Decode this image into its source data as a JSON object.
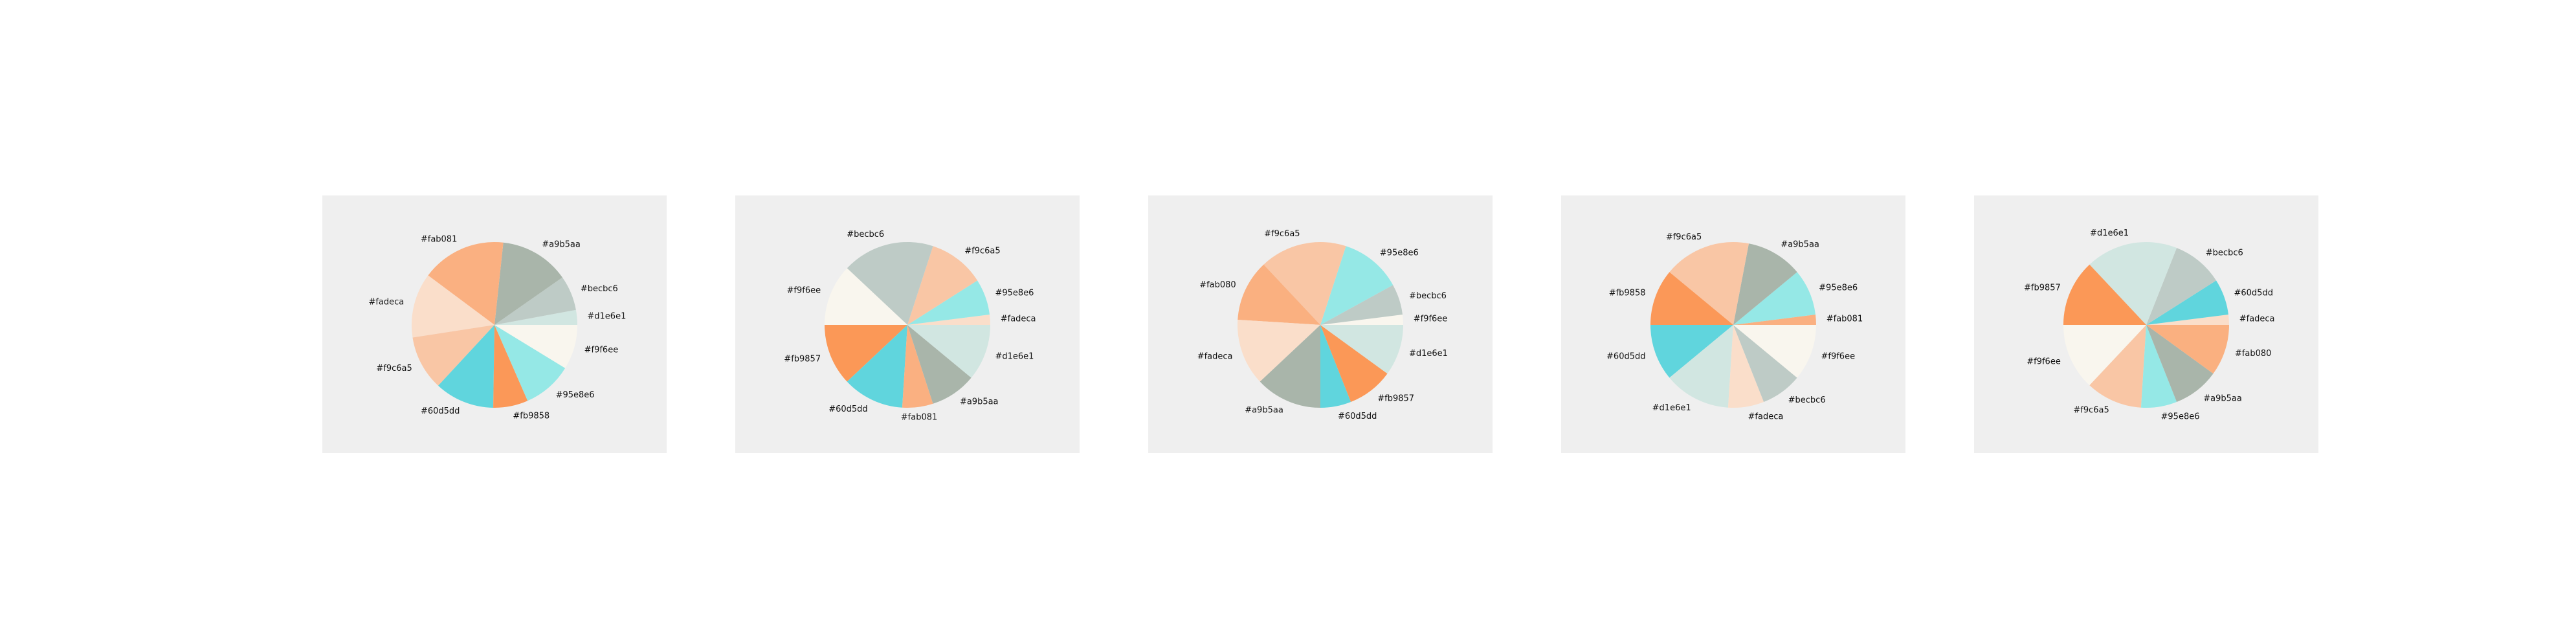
{
  "chart_data": [
    {
      "type": "pie",
      "start_angle_deg": 0,
      "direction": "counterclockwise",
      "slices": [
        {
          "label": "#d1e6e1",
          "value": 3,
          "color": "#d1e6e1"
        },
        {
          "label": "#becbc6",
          "value": 7,
          "color": "#becbc6"
        },
        {
          "label": "#a9b5aa",
          "value": 14,
          "color": "#a9b5aa"
        },
        {
          "label": "#fab081",
          "value": 17,
          "color": "#fab081"
        },
        {
          "label": "#fadeca",
          "value": 13,
          "color": "#fadeca"
        },
        {
          "label": "#f9c6a5",
          "value": 11,
          "color": "#f9c6a5"
        },
        {
          "label": "#60d5dd",
          "value": 12,
          "color": "#60d5dd"
        },
        {
          "label": "#fb9858",
          "value": 7,
          "color": "#fb9858"
        },
        {
          "label": "#95e8e6",
          "value": 10,
          "color": "#95e8e6"
        },
        {
          "label": "#f9f6ee",
          "value": 9,
          "color": "#f9f6ee"
        }
      ]
    },
    {
      "type": "pie",
      "start_angle_deg": 0,
      "direction": "counterclockwise",
      "slices": [
        {
          "label": "#fadeca",
          "value": 2,
          "color": "#fadeca"
        },
        {
          "label": "#95e8e6",
          "value": 7,
          "color": "#95e8e6"
        },
        {
          "label": "#f9c6a5",
          "value": 11,
          "color": "#f9c6a5"
        },
        {
          "label": "#becbc6",
          "value": 18,
          "color": "#becbc6"
        },
        {
          "label": "#f9f6ee",
          "value": 12,
          "color": "#f9f6ee"
        },
        {
          "label": "#fb9857",
          "value": 12,
          "color": "#fb9857"
        },
        {
          "label": "#60d5dd",
          "value": 12,
          "color": "#60d5dd"
        },
        {
          "label": "#fab081",
          "value": 6,
          "color": "#fab081"
        },
        {
          "label": "#a9b5aa",
          "value": 9,
          "color": "#a9b5aa"
        },
        {
          "label": "#d1e6e1",
          "value": 11,
          "color": "#d1e6e1"
        }
      ]
    },
    {
      "type": "pie",
      "start_angle_deg": 0,
      "direction": "counterclockwise",
      "slices": [
        {
          "label": "#f9f6ee",
          "value": 2,
          "color": "#f9f6ee"
        },
        {
          "label": "#becbc6",
          "value": 6,
          "color": "#becbc6"
        },
        {
          "label": "#95e8e6",
          "value": 12,
          "color": "#95e8e6"
        },
        {
          "label": "#f9c6a5",
          "value": 17,
          "color": "#f9c6a5"
        },
        {
          "label": "#fab080",
          "value": 12,
          "color": "#fab080"
        },
        {
          "label": "#fadeca",
          "value": 13,
          "color": "#fadeca"
        },
        {
          "label": "#a9b5aa",
          "value": 13,
          "color": "#a9b5aa"
        },
        {
          "label": "#60d5dd",
          "value": 6,
          "color": "#60d5dd"
        },
        {
          "label": "#fb9857",
          "value": 9,
          "color": "#fb9857"
        },
        {
          "label": "#d1e6e1",
          "value": 10,
          "color": "#d1e6e1"
        }
      ]
    },
    {
      "type": "pie",
      "start_angle_deg": 0,
      "direction": "counterclockwise",
      "slices": [
        {
          "label": "#fab081",
          "value": 2,
          "color": "#fab081"
        },
        {
          "label": "#95e8e6",
          "value": 9,
          "color": "#95e8e6"
        },
        {
          "label": "#a9b5aa",
          "value": 11,
          "color": "#a9b5aa"
        },
        {
          "label": "#f9c6a5",
          "value": 17,
          "color": "#f9c6a5"
        },
        {
          "label": "#fb9858",
          "value": 11,
          "color": "#fb9858"
        },
        {
          "label": "#60d5dd",
          "value": 11,
          "color": "#60d5dd"
        },
        {
          "label": "#d1e6e1",
          "value": 13,
          "color": "#d1e6e1"
        },
        {
          "label": "#fadeca",
          "value": 7,
          "color": "#fadeca"
        },
        {
          "label": "#becbc6",
          "value": 8,
          "color": "#becbc6"
        },
        {
          "label": "#f9f6ee",
          "value": 11,
          "color": "#f9f6ee"
        }
      ]
    },
    {
      "type": "pie",
      "start_angle_deg": 0,
      "direction": "counterclockwise",
      "slices": [
        {
          "label": "#fadeca",
          "value": 2,
          "color": "#fadeca"
        },
        {
          "label": "#60d5dd",
          "value": 7,
          "color": "#60d5dd"
        },
        {
          "label": "#becbc6",
          "value": 10,
          "color": "#becbc6"
        },
        {
          "label": "#d1e6e1",
          "value": 18,
          "color": "#d1e6e1"
        },
        {
          "label": "#fb9857",
          "value": 13,
          "color": "#fb9857"
        },
        {
          "label": "#f9f6ee",
          "value": 13,
          "color": "#f9f6ee"
        },
        {
          "label": "#f9c6a5",
          "value": 11,
          "color": "#f9c6a5"
        },
        {
          "label": "#95e8e6",
          "value": 7,
          "color": "#95e8e6"
        },
        {
          "label": "#a9b5aa",
          "value": 9,
          "color": "#a9b5aa"
        },
        {
          "label": "#fab080",
          "value": 10,
          "color": "#fab080"
        }
      ]
    }
  ]
}
